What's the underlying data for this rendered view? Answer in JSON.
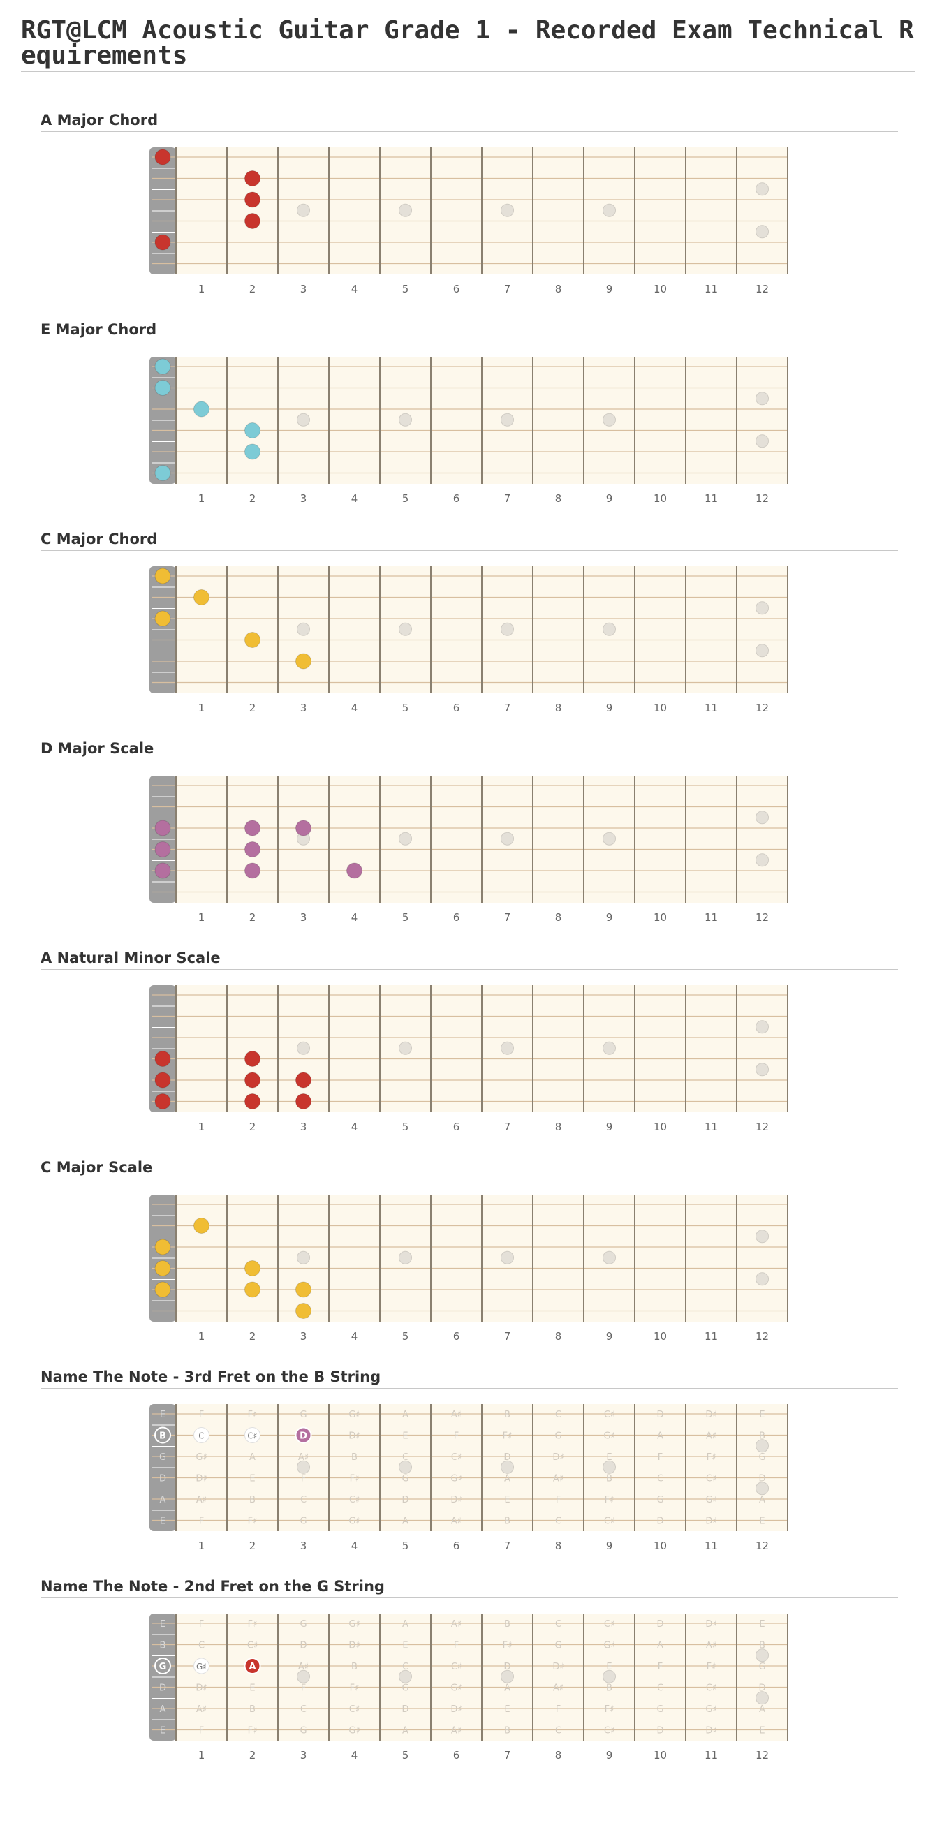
{
  "page": {
    "title": "RGT@LCM Acoustic Guitar Grade 1 - Recorded Exam Technical Requirements"
  },
  "colors": {
    "red": "#c8352d",
    "cyan": "#7dcbd6",
    "yellow": "#f0bd34",
    "purple": "#b46f9f",
    "board": "#fdf8ec",
    "nut": "#9e9e9e",
    "fret_number": "#666666",
    "faded_note": "#d2cbc0"
  },
  "fret_numbers": [
    "1",
    "2",
    "3",
    "4",
    "5",
    "6",
    "7",
    "8",
    "9",
    "10",
    "11",
    "12"
  ],
  "open_string_names": [
    "E",
    "B",
    "G",
    "D",
    "A",
    "E"
  ],
  "note_grid": [
    [
      "F",
      "F♯",
      "G",
      "G♯",
      "A",
      "A♯",
      "B",
      "C",
      "C♯",
      "D",
      "D♯",
      "E"
    ],
    [
      "C",
      "C♯",
      "D",
      "D♯",
      "E",
      "F",
      "F♯",
      "G",
      "G♯",
      "A",
      "A♯",
      "B"
    ],
    [
      "G♯",
      "A",
      "A♯",
      "B",
      "C",
      "C♯",
      "D",
      "D♯",
      "E",
      "F",
      "F♯",
      "G"
    ],
    [
      "D♯",
      "E",
      "F",
      "F♯",
      "G",
      "G♯",
      "A",
      "A♯",
      "B",
      "C",
      "C♯",
      "D"
    ],
    [
      "A♯",
      "B",
      "C",
      "C♯",
      "D",
      "D♯",
      "E",
      "F",
      "F♯",
      "G",
      "G♯",
      "A"
    ],
    [
      "F",
      "F♯",
      "G",
      "G♯",
      "A",
      "A♯",
      "B",
      "C",
      "C♯",
      "D",
      "D♯",
      "E"
    ]
  ],
  "sections": [
    {
      "title": "A Major Chord",
      "color": "red",
      "dots": [
        [
          1,
          0
        ],
        [
          2,
          2
        ],
        [
          3,
          2
        ],
        [
          4,
          2
        ],
        [
          5,
          0
        ]
      ],
      "labels": []
    },
    {
      "title": "E Major Chord",
      "color": "cyan",
      "dots": [
        [
          1,
          0
        ],
        [
          2,
          0
        ],
        [
          3,
          1
        ],
        [
          4,
          2
        ],
        [
          5,
          2
        ],
        [
          6,
          0
        ]
      ],
      "labels": []
    },
    {
      "title": "C Major Chord",
      "color": "yellow",
      "dots": [
        [
          1,
          0
        ],
        [
          2,
          1
        ],
        [
          3,
          0
        ],
        [
          4,
          2
        ],
        [
          5,
          3
        ]
      ],
      "labels": []
    },
    {
      "title": "D Major Scale",
      "color": "purple",
      "dots": [
        [
          3,
          0
        ],
        [
          3,
          2
        ],
        [
          3,
          3
        ],
        [
          4,
          0
        ],
        [
          4,
          2
        ],
        [
          5,
          0
        ],
        [
          5,
          2
        ],
        [
          5,
          4
        ]
      ],
      "labels": []
    },
    {
      "title": "A Natural Minor Scale",
      "color": "red",
      "dots": [
        [
          4,
          0
        ],
        [
          4,
          2
        ],
        [
          5,
          0
        ],
        [
          5,
          2
        ],
        [
          5,
          3
        ],
        [
          6,
          0
        ],
        [
          6,
          2
        ],
        [
          6,
          3
        ]
      ],
      "labels": []
    },
    {
      "title": "C Major Scale",
      "color": "yellow",
      "dots": [
        [
          2,
          1
        ],
        [
          3,
          0
        ],
        [
          4,
          0
        ],
        [
          4,
          2
        ],
        [
          5,
          0
        ],
        [
          5,
          2
        ],
        [
          5,
          3
        ],
        [
          6,
          3
        ]
      ],
      "labels": []
    },
    {
      "title": "Name The Note - 3rd Fret on the B String",
      "color": "purple",
      "dots": [],
      "show_note_grid": true,
      "labels": [
        {
          "s": 2,
          "f": 0,
          "text": "B",
          "style": "outline-filled"
        },
        {
          "s": 2,
          "f": 1,
          "text": "C",
          "style": "outline"
        },
        {
          "s": 2,
          "f": 2,
          "text": "C♯",
          "style": "outline"
        },
        {
          "s": 2,
          "f": 3,
          "text": "D",
          "style": "filled"
        }
      ]
    },
    {
      "title": "Name The Note - 2nd Fret on the G String",
      "color": "red",
      "dots": [],
      "show_note_grid": true,
      "labels": [
        {
          "s": 3,
          "f": 0,
          "text": "G",
          "style": "outline-filled"
        },
        {
          "s": 3,
          "f": 1,
          "text": "G♯",
          "style": "outline"
        },
        {
          "s": 3,
          "f": 2,
          "text": "A",
          "style": "filled"
        }
      ]
    }
  ]
}
